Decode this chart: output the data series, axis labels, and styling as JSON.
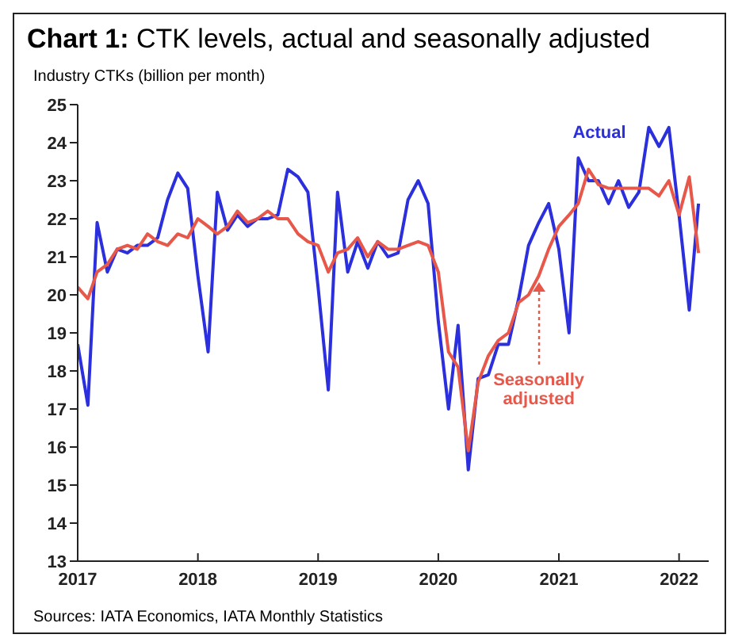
{
  "chart_data": {
    "type": "line",
    "title": "Chart 1: CTK levels, actual and seasonally adjusted",
    "ylabel": "Industry CTKs (billion per month)",
    "annotations": [
      "Sources: IATA Economics, IATA Monthly Statistics"
    ],
    "x": [
      "2017-01",
      "2017-02",
      "2017-03",
      "2017-04",
      "2017-05",
      "2017-06",
      "2017-07",
      "2017-08",
      "2017-09",
      "2017-10",
      "2017-11",
      "2017-12",
      "2018-01",
      "2018-02",
      "2018-03",
      "2018-04",
      "2018-05",
      "2018-06",
      "2018-07",
      "2018-08",
      "2018-09",
      "2018-10",
      "2018-11",
      "2018-12",
      "2019-01",
      "2019-02",
      "2019-03",
      "2019-04",
      "2019-05",
      "2019-06",
      "2019-07",
      "2019-08",
      "2019-09",
      "2019-10",
      "2019-11",
      "2019-12",
      "2020-01",
      "2020-02",
      "2020-03",
      "2020-04",
      "2020-05",
      "2020-06",
      "2020-07",
      "2020-08",
      "2020-09",
      "2020-10",
      "2020-11",
      "2020-12",
      "2021-01",
      "2021-02",
      "2021-03",
      "2021-04",
      "2021-05",
      "2021-06",
      "2021-07",
      "2021-08",
      "2021-09",
      "2021-10",
      "2021-11",
      "2021-12",
      "2022-01",
      "2022-02",
      "2022-03"
    ],
    "series": [
      {
        "name": "Actual",
        "color": "#2b2fdc",
        "values": [
          18.7,
          17.1,
          21.9,
          20.6,
          21.2,
          21.1,
          21.3,
          21.3,
          21.5,
          22.5,
          23.2,
          22.8,
          20.5,
          18.5,
          22.7,
          21.7,
          22.1,
          21.8,
          22.0,
          22.0,
          22.1,
          23.3,
          23.1,
          22.7,
          20.2,
          17.5,
          22.7,
          20.6,
          21.4,
          20.7,
          21.4,
          21.0,
          21.1,
          22.5,
          23.0,
          22.4,
          19.3,
          17.0,
          19.2,
          15.4,
          17.8,
          17.9,
          18.7,
          18.7,
          19.9,
          21.3,
          21.9,
          22.4,
          21.2,
          19.0,
          23.6,
          23.0,
          23.0,
          22.4,
          23.0,
          22.3,
          22.7,
          24.4,
          23.9,
          24.4,
          22.1,
          19.6,
          22.4
        ]
      },
      {
        "name": "Seasonally adjusted",
        "color": "#e8584a",
        "values": [
          20.2,
          19.9,
          20.6,
          20.8,
          21.2,
          21.3,
          21.2,
          21.6,
          21.4,
          21.3,
          21.6,
          21.5,
          22.0,
          21.8,
          21.6,
          21.8,
          22.2,
          21.9,
          22.0,
          22.2,
          22.0,
          22.0,
          21.6,
          21.4,
          21.3,
          20.6,
          21.1,
          21.2,
          21.5,
          21.0,
          21.4,
          21.2,
          21.2,
          21.3,
          21.4,
          21.3,
          20.6,
          18.5,
          18.1,
          15.9,
          17.7,
          18.4,
          18.8,
          19.0,
          19.8,
          20.0,
          20.5,
          21.2,
          21.8,
          22.1,
          22.4,
          23.3,
          22.9,
          22.8,
          22.8,
          22.8,
          22.8,
          22.8,
          22.6,
          23.0,
          22.1,
          23.1,
          21.1
        ]
      }
    ],
    "xlim": [
      "2017-01",
      "2022-04"
    ],
    "xticks": [
      "2017",
      "2018",
      "2019",
      "2020",
      "2021",
      "2022"
    ],
    "ylim": [
      13,
      25
    ],
    "yticks": [
      13,
      14,
      15,
      16,
      17,
      18,
      19,
      20,
      21,
      22,
      23,
      24,
      25
    ],
    "grid": false,
    "legend": false,
    "marker": "none",
    "line_style": "solid"
  }
}
